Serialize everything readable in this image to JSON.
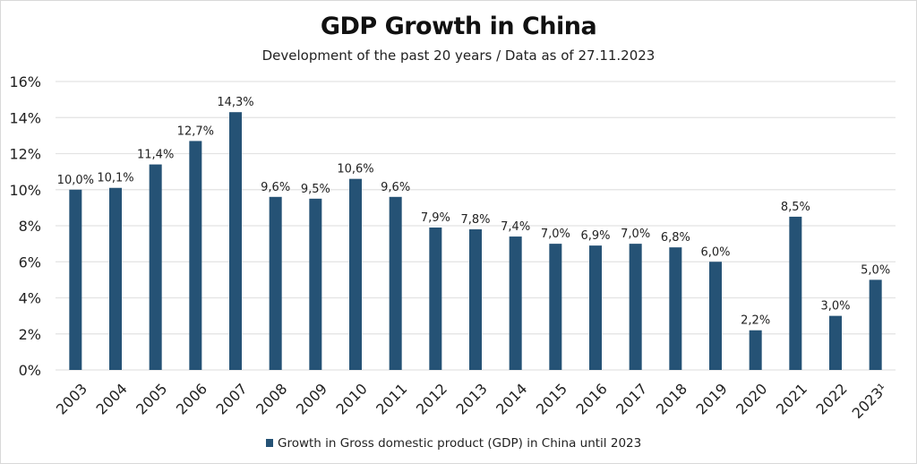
{
  "chart_data": {
    "type": "bar",
    "title": "GDP Growth in China",
    "subtitle": "Development of the past 20 years / Data as of 27.11.2023",
    "xlabel": "",
    "ylabel": "",
    "categories": [
      "2003",
      "2004",
      "2005",
      "2006",
      "2007",
      "2008",
      "2009",
      "2010",
      "2011",
      "2012",
      "2013",
      "2014",
      "2015",
      "2016",
      "2017",
      "2018",
      "2019",
      "2020",
      "2021",
      "2022",
      "2023¹"
    ],
    "series": [
      {
        "name": "Growth in Gross domestic product (GDP) in China until 2023",
        "values": [
          10.0,
          10.1,
          11.4,
          12.7,
          14.3,
          9.6,
          9.5,
          10.6,
          9.6,
          7.9,
          7.8,
          7.4,
          7.0,
          6.9,
          7.0,
          6.8,
          6.0,
          2.2,
          8.5,
          3.0,
          5.0
        ],
        "labels": [
          "10,0%",
          "10,1%",
          "11,4%",
          "12,7%",
          "14,3%",
          "9,6%",
          "9,5%",
          "10,6%",
          "9,6%",
          "7,9%",
          "7,8%",
          "7,4%",
          "7,0%",
          "6,9%",
          "7,0%",
          "6,8%",
          "6,0%",
          "2,2%",
          "8,5%",
          "3,0%",
          "5,0%"
        ],
        "color": "#255275"
      }
    ],
    "ylim": [
      0,
      16
    ],
    "yticks": [
      0,
      2,
      4,
      6,
      8,
      10,
      12,
      14,
      16
    ],
    "ytick_labels": [
      "0%",
      "2%",
      "4%",
      "6%",
      "8%",
      "10%",
      "12%",
      "14%",
      "16%"
    ],
    "grid": true,
    "legend": "bottom-center"
  }
}
